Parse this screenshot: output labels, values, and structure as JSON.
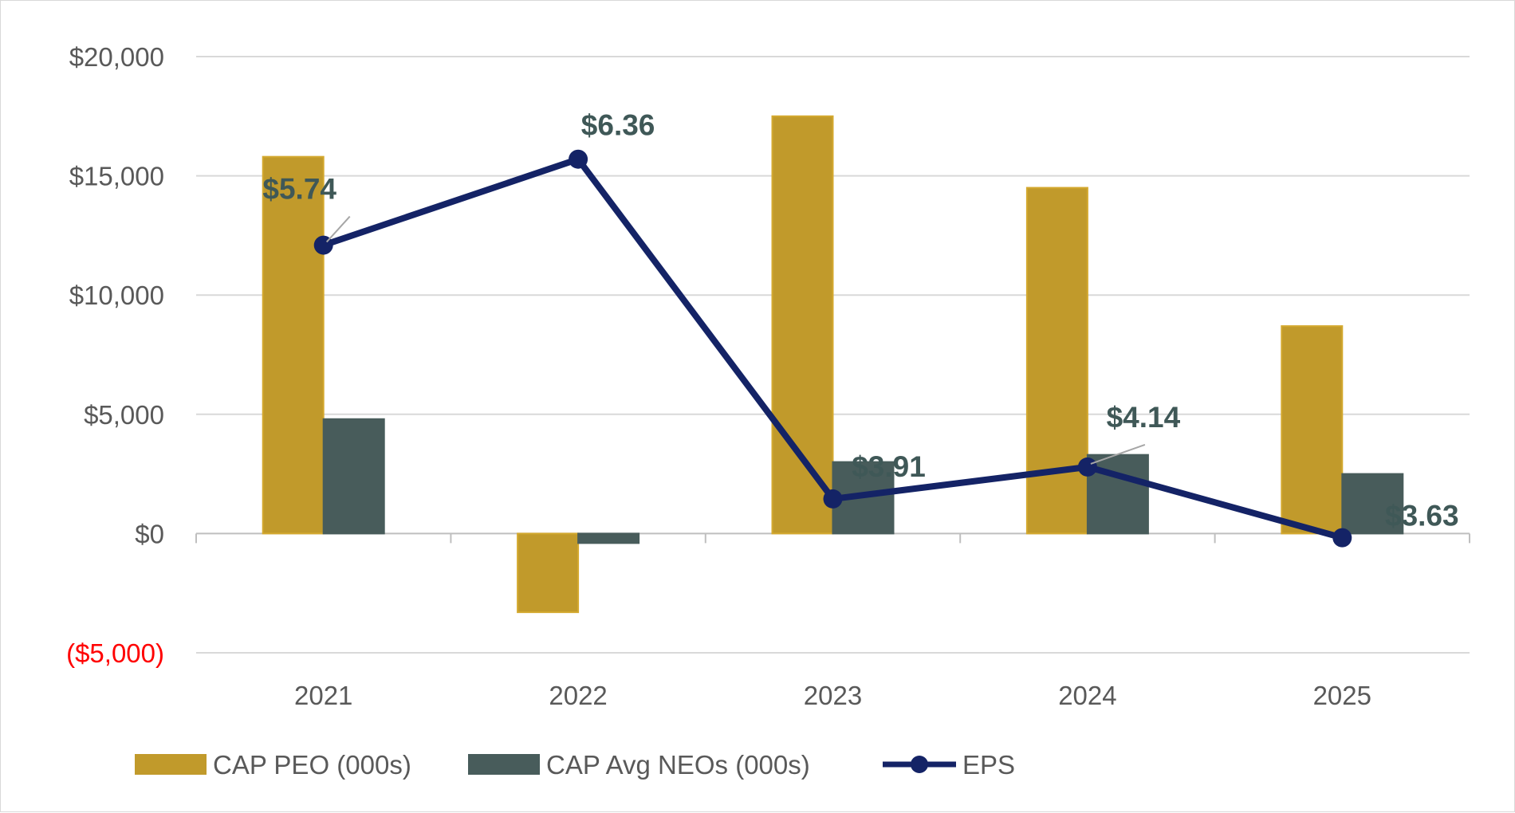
{
  "chart_data": {
    "type": "bar",
    "categories": [
      "2021",
      "2022",
      "2023",
      "2024",
      "2025"
    ],
    "series": [
      {
        "name": "CAP PEO (000s)",
        "kind": "bar",
        "color": "#c19a2b",
        "edge": "#d4a92f",
        "values": [
          15800,
          -3300,
          17500,
          14500,
          8700
        ]
      },
      {
        "name": "CAP Avg NEOs (000s)",
        "kind": "bar",
        "color": "#485c5b",
        "edge": "#485c5b",
        "values": [
          4800,
          -400,
          3000,
          3300,
          2500
        ]
      },
      {
        "name": "EPS",
        "kind": "line",
        "color": "#142366",
        "values": [
          5.74,
          6.36,
          3.91,
          4.14,
          3.63
        ],
        "labels": [
          "$5.74",
          "$6.36",
          "$3.91",
          "$4.14",
          "$3.63"
        ]
      }
    ],
    "ylim": [
      -5000,
      20000
    ],
    "yticks": [
      {
        "value": 20000,
        "label": "$20,000",
        "color": "#595959"
      },
      {
        "value": 15000,
        "label": "$15,000",
        "color": "#595959"
      },
      {
        "value": 10000,
        "label": "$10,000",
        "color": "#595959"
      },
      {
        "value": 5000,
        "label": "$5,000",
        "color": "#595959"
      },
      {
        "value": 0,
        "label": "$0",
        "color": "#595959"
      },
      {
        "value": -5000,
        "label": "($5,000)",
        "color": "#ff0000"
      }
    ],
    "eps_axis_hidden": true,
    "grid": true,
    "legend_position": "bottom",
    "title": "",
    "xlabel": "",
    "ylabel": ""
  }
}
